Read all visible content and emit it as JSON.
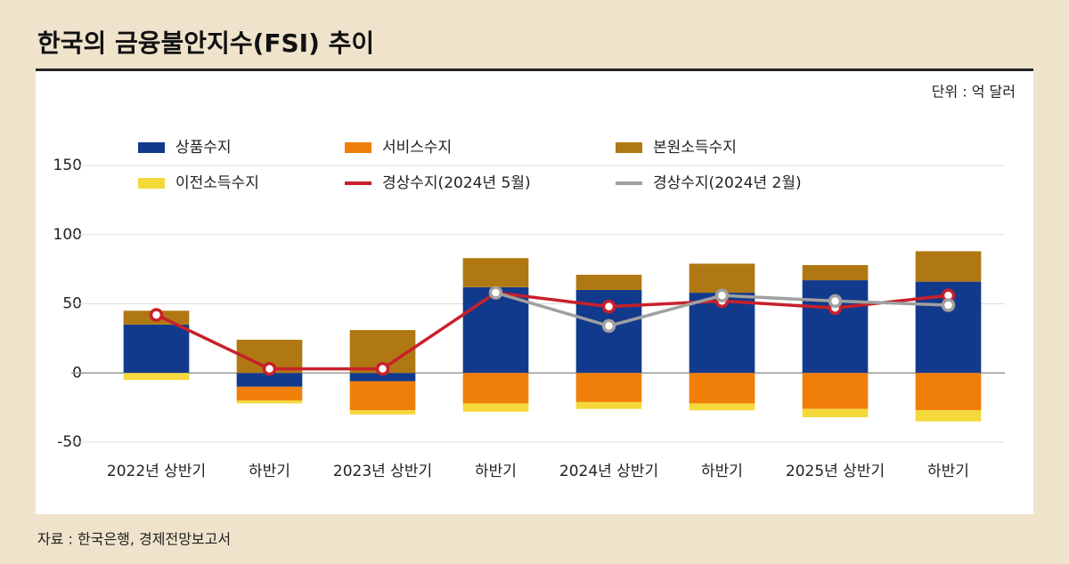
{
  "chart_data": {
    "type": "bar",
    "title": "한국의 금융불안지수(FSI) 추이",
    "unit": "단위 : 억 달러",
    "source": "자료 : 한국은행, 경제전망보고서",
    "categories": [
      "2022년 상반기",
      "하반기",
      "2023년 상반기",
      "하반기",
      "2024년 상반기",
      "하반기",
      "2025년 상반기",
      "하반기"
    ],
    "series": [
      {
        "name": "상품수지",
        "type": "bar",
        "color": "#123a8c",
        "values": [
          35,
          -10,
          -6,
          62,
          60,
          58,
          67,
          66
        ]
      },
      {
        "name": "서비스수지",
        "type": "bar",
        "color": "#f07f0a",
        "values": [
          0,
          -10,
          -21,
          -22,
          -21,
          -22,
          -26,
          -27
        ]
      },
      {
        "name": "본원소득수지",
        "type": "bar",
        "color": "#b07812",
        "values": [
          10,
          24,
          31,
          21,
          11,
          21,
          11,
          22
        ]
      },
      {
        "name": "이전소득수지",
        "type": "bar",
        "color": "#f5d93a",
        "values": [
          -5,
          -2,
          -3,
          -6,
          -5,
          -5,
          -6,
          -8
        ]
      },
      {
        "name": "경상수지(2024년 5월)",
        "type": "line",
        "color": "#c8202a",
        "values": [
          42,
          3,
          3,
          58,
          48,
          52,
          47,
          56
        ]
      },
      {
        "name": "경상수지(2024년 2월)",
        "type": "line",
        "color": "#a0a0a0",
        "values": [
          null,
          null,
          null,
          58,
          34,
          56,
          52,
          49
        ]
      }
    ],
    "ylim": [
      -50,
      150
    ],
    "yticks": [
      -50,
      0,
      50,
      100,
      150
    ],
    "grid": true
  }
}
